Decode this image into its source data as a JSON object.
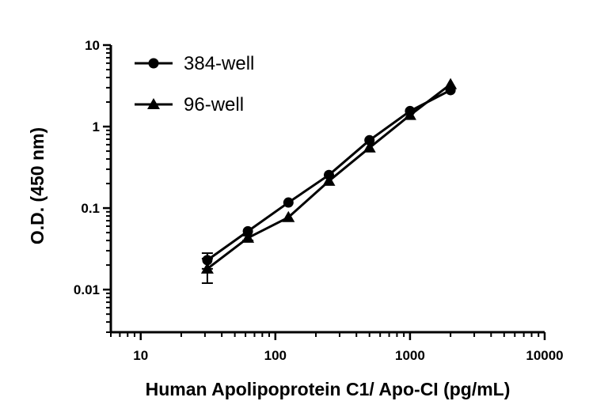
{
  "chart_data": {
    "type": "line",
    "title": "",
    "xlabel": "Human Apolipoprotein C1/ Apo-CI (pg/mL)",
    "ylabel": "O.D. (450 nm)",
    "x_scale": "log",
    "y_scale": "log",
    "xlim": [
      6,
      10000
    ],
    "ylim": [
      0.003,
      10
    ],
    "x_ticks": [
      10,
      100,
      1000,
      10000
    ],
    "x_tick_labels": [
      "10",
      "100",
      "1000",
      "10000"
    ],
    "y_ticks": [
      0.01,
      0.1,
      1,
      10
    ],
    "y_tick_labels": [
      "0.01",
      "0.1",
      "1",
      "10"
    ],
    "grid": false,
    "legend_position": "top-left",
    "series": [
      {
        "name": "384-well",
        "marker": "circle",
        "x": [
          31.25,
          62.5,
          125,
          250,
          500,
          1000,
          2000
        ],
        "y": [
          0.023,
          0.052,
          0.117,
          0.255,
          0.68,
          1.55,
          2.8
        ],
        "err": [
          0.005,
          0.003,
          0.004,
          0.01,
          0.03,
          0.06,
          0.1
        ]
      },
      {
        "name": "96-well",
        "marker": "triangle",
        "x": [
          31.25,
          62.5,
          125,
          250,
          500,
          1000,
          2000
        ],
        "y": [
          0.018,
          0.043,
          0.077,
          0.215,
          0.55,
          1.38,
          3.3
        ],
        "err": [
          0.006,
          0.003,
          0.004,
          0.01,
          0.03,
          0.06,
          0.1
        ]
      }
    ]
  }
}
